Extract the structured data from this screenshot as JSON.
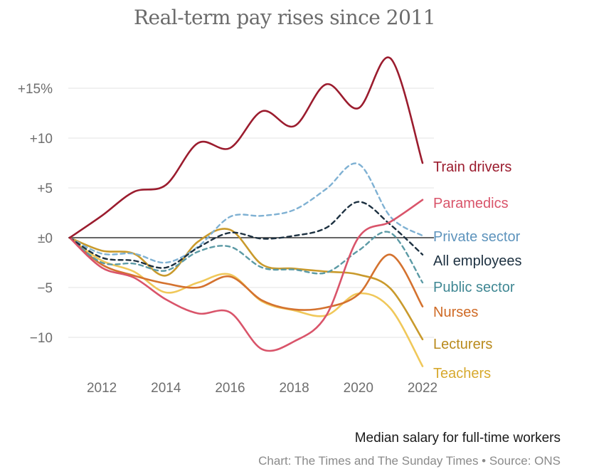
{
  "chart_data": {
    "type": "line",
    "title": "Real-term pay rises since 2011",
    "subtitle": "Median salary for full-time workers",
    "credit": "Chart: The Times and The Sunday Times • Source: ONS",
    "xlim": [
      2011,
      2022
    ],
    "ylim": [
      -14,
      19
    ],
    "x_ticks": [
      2012,
      2014,
      2016,
      2018,
      2020,
      2022
    ],
    "y_ticks": [
      {
        "value": 15,
        "label": "+15%"
      },
      {
        "value": 10,
        "label": "+10"
      },
      {
        "value": 5,
        "label": "+5"
      },
      {
        "value": 0,
        "label": "±0"
      },
      {
        "value": -5,
        "label": "−5"
      },
      {
        "value": -10,
        "label": "−10"
      }
    ],
    "grid": true,
    "legend": "direct-labels-right",
    "x": [
      2011,
      2012,
      2013,
      2014,
      2015,
      2016,
      2017,
      2018,
      2019,
      2020,
      2021,
      2022
    ],
    "series": [
      {
        "name": "Train drivers",
        "color": "#9b1c2e",
        "dash": false,
        "values": [
          0,
          2.2,
          4.6,
          5.3,
          9.5,
          9.0,
          12.7,
          11.2,
          15.4,
          13.0,
          18.0,
          7.5
        ]
      },
      {
        "name": "Paramedics",
        "color": "#d9546a",
        "dash": false,
        "values": [
          0,
          -3.0,
          -4.0,
          -6.2,
          -7.6,
          -7.5,
          -11.2,
          -10.4,
          -7.8,
          0.0,
          1.6,
          3.8
        ]
      },
      {
        "name": "Private sector",
        "color": "#7fb1d3",
        "dash": true,
        "values": [
          0,
          -1.6,
          -1.6,
          -2.5,
          -0.9,
          2.1,
          2.2,
          2.8,
          4.9,
          7.4,
          2.1,
          0.2
        ]
      },
      {
        "name": "All employees",
        "color": "#1d3141",
        "dash": true,
        "values": [
          0,
          -2.0,
          -2.3,
          -3.0,
          -1.0,
          0.5,
          -0.1,
          0.2,
          1.0,
          3.6,
          1.3,
          -1.7
        ]
      },
      {
        "name": "Public sector",
        "color": "#5b9aa5",
        "dash": true,
        "values": [
          0,
          -2.5,
          -2.6,
          -3.3,
          -1.4,
          -0.9,
          -3.0,
          -3.2,
          -3.5,
          -1.3,
          0.5,
          -4.5
        ]
      },
      {
        "name": "Nurses",
        "color": "#d4722f",
        "dash": false,
        "values": [
          0,
          -2.7,
          -3.8,
          -4.6,
          -5.0,
          -3.9,
          -6.3,
          -7.2,
          -7.0,
          -5.7,
          -1.7,
          -6.9
        ]
      },
      {
        "name": "Lecturers",
        "color": "#c99a2c",
        "dash": false,
        "values": [
          0,
          -1.3,
          -1.6,
          -3.8,
          -0.4,
          0.8,
          -2.7,
          -3.1,
          -3.4,
          -3.7,
          -5.1,
          -10.2
        ]
      },
      {
        "name": "Teachers",
        "color": "#f0c85a",
        "dash": false,
        "values": [
          0,
          -2.3,
          -3.4,
          -5.5,
          -4.5,
          -3.7,
          -6.4,
          -7.3,
          -7.8,
          -5.6,
          -7.1,
          -12.9
        ]
      }
    ]
  }
}
